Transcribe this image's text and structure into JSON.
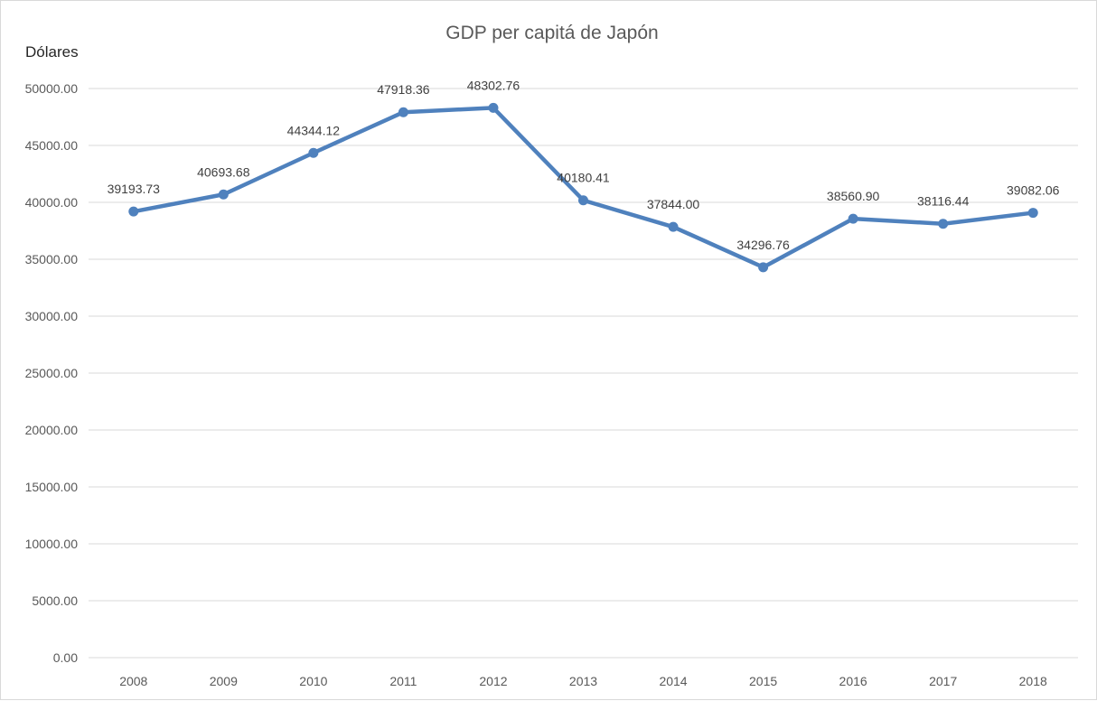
{
  "chart_data": {
    "type": "line",
    "title": "GDP per capitá de Japón",
    "ylabel": "Dólares",
    "xlabel": "",
    "categories": [
      "2008",
      "2009",
      "2010",
      "2011",
      "2012",
      "2013",
      "2014",
      "2015",
      "2016",
      "2017",
      "2018"
    ],
    "series": [
      {
        "values": [
          39193.73,
          40693.68,
          44344.12,
          47918.36,
          48302.76,
          40180.41,
          37844.0,
          34296.76,
          38560.9,
          38116.44,
          39082.06
        ],
        "value_labels": [
          "39193.73",
          "40693.68",
          "44344.12",
          "47918.36",
          "48302.76",
          "40180.41",
          "37844.00",
          "34296.76",
          "38560.90",
          "38116.44",
          "39082.06"
        ]
      }
    ],
    "ylim": [
      0,
      50000
    ],
    "y_ticks": [
      "0.00",
      "5000.00",
      "10000.00",
      "15000.00",
      "20000.00",
      "25000.00",
      "30000.00",
      "35000.00",
      "40000.00",
      "45000.00",
      "50000.00"
    ],
    "grid": true,
    "legend": "none",
    "colors": {
      "line": "#4f81bd",
      "grid": "#d9d9d9",
      "text": "#595959"
    }
  }
}
